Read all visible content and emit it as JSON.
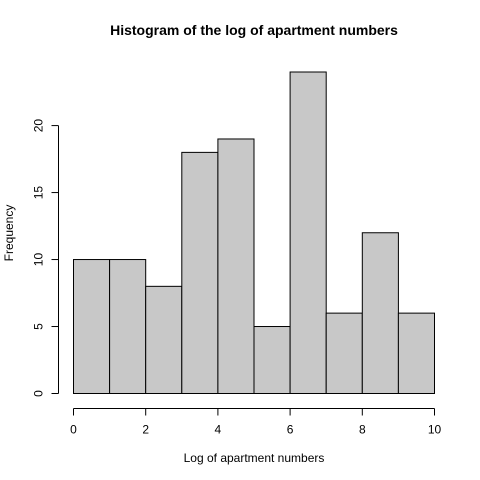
{
  "chart_data": {
    "type": "bar",
    "title": "Histogram of the log of apartment numbers",
    "xlabel": "Log of apartment numbers",
    "ylabel": "Frequency",
    "bins": [
      {
        "start": 0,
        "end": 1,
        "count": 10
      },
      {
        "start": 1,
        "end": 2,
        "count": 10
      },
      {
        "start": 2,
        "end": 3,
        "count": 8
      },
      {
        "start": 3,
        "end": 4,
        "count": 18
      },
      {
        "start": 4,
        "end": 5,
        "count": 19
      },
      {
        "start": 5,
        "end": 6,
        "count": 5
      },
      {
        "start": 6,
        "end": 7,
        "count": 24
      },
      {
        "start": 7,
        "end": 8,
        "count": 6
      },
      {
        "start": 8,
        "end": 9,
        "count": 12
      },
      {
        "start": 9,
        "end": 10,
        "count": 6
      }
    ],
    "x_ticks": [
      0,
      2,
      4,
      6,
      8,
      10
    ],
    "y_ticks": [
      0,
      5,
      10,
      15,
      20
    ],
    "xlim": [
      0,
      10
    ],
    "ylim": [
      0,
      24
    ],
    "bar_color": "#c8c8c8",
    "grid": false
  }
}
